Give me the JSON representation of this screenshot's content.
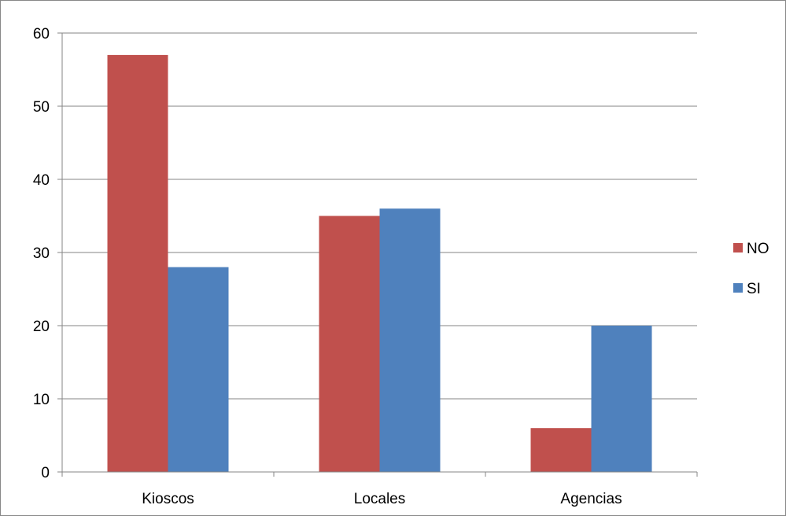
{
  "chart_data": {
    "type": "bar",
    "title": "",
    "xlabel": "",
    "ylabel": "",
    "categories": [
      "Kioscos",
      "Locales",
      "Agencias"
    ],
    "series": [
      {
        "name": "NO",
        "values": [
          57,
          35,
          6
        ],
        "color": "#c0504d"
      },
      {
        "name": "SI",
        "values": [
          28,
          36,
          20
        ],
        "color": "#4f81bd"
      }
    ],
    "ylim": [
      0,
      60
    ],
    "yticks": [
      "0",
      "10",
      "20",
      "30",
      "40",
      "50",
      "60"
    ],
    "grid": true,
    "legend_position": "right",
    "gridline_color": "#868686",
    "axis_color": "#868686"
  }
}
